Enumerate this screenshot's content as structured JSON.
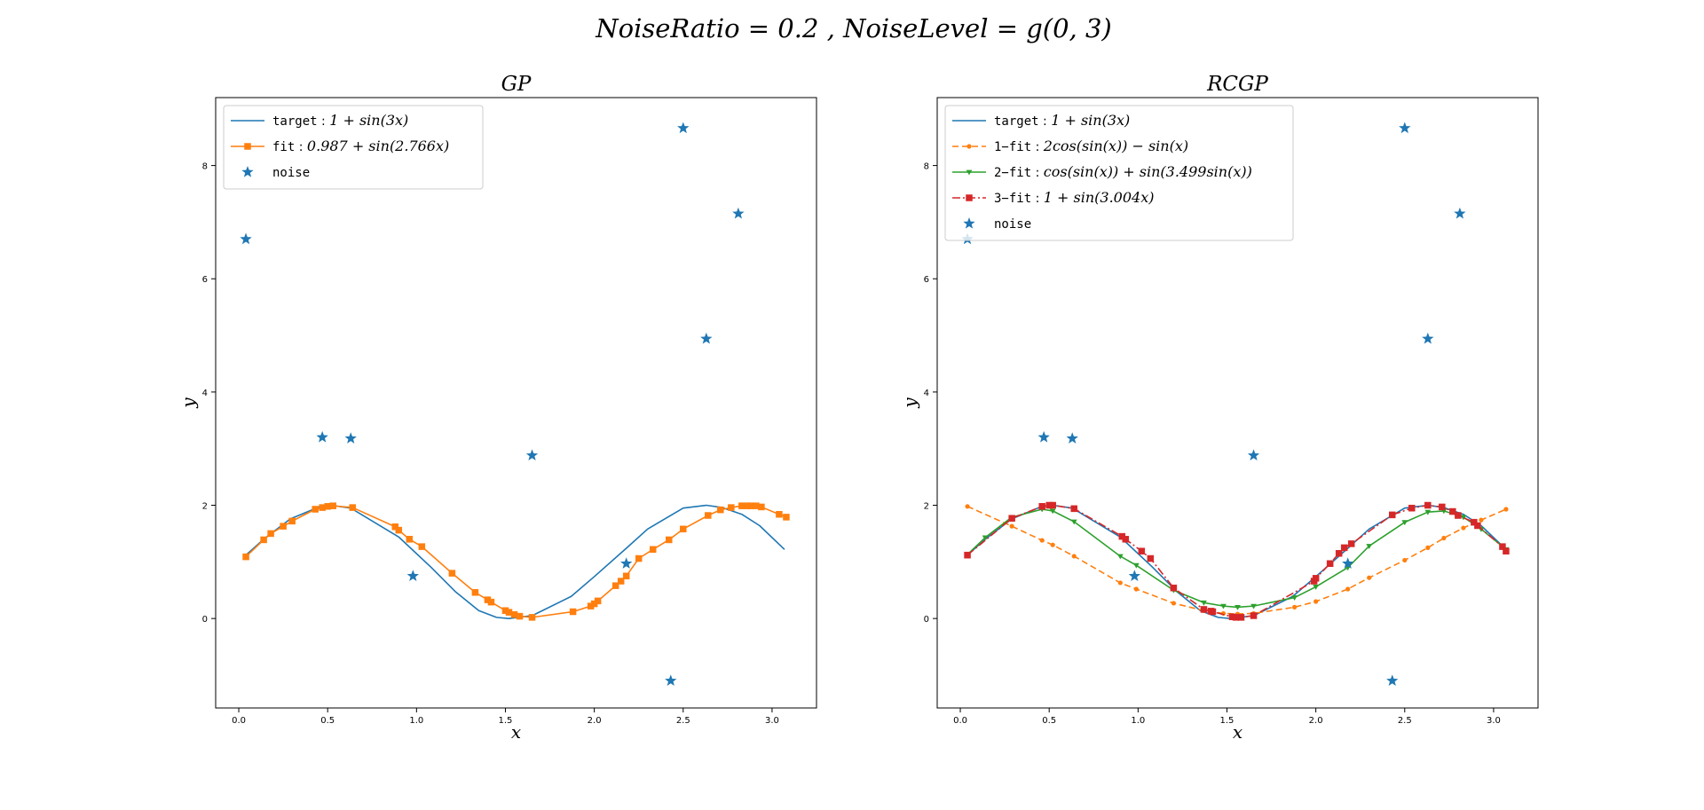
{
  "figure": {
    "suptitle": "NoiseRatio = 0.2 , NoiseLevel = g(0, 3)"
  },
  "chart_data": [
    {
      "type": "line",
      "title": "GP",
      "xlabel": "x",
      "ylabel": "y",
      "xlim": [
        -0.13,
        3.25
      ],
      "ylim": [
        -1.58,
        9.2
      ],
      "xticks": [
        "0.0",
        "0.5",
        "1.0",
        "1.5",
        "2.0",
        "2.5",
        "3.0"
      ],
      "yticks": [
        "0",
        "2",
        "4",
        "6",
        "8"
      ],
      "grid": false,
      "legend_position": "upper-left",
      "series": [
        {
          "name": "target : 1 + sin(3x)",
          "label_prefix": "target",
          "label_math": "1 + sin(3x)",
          "color": "#1f77b4",
          "style": "solid",
          "marker": "none",
          "x": [
            0.04,
            0.14,
            0.29,
            0.46,
            0.52,
            0.63,
            0.9,
            1.08,
            1.22,
            1.35,
            1.45,
            1.52,
            1.65,
            1.87,
            2.0,
            2.18,
            2.3,
            2.5,
            2.63,
            2.72,
            2.83,
            2.93,
            3.07
          ],
          "y": [
            1.12,
            1.4,
            1.76,
            1.98,
            2.0,
            1.95,
            1.44,
            0.91,
            0.47,
            0.14,
            0.02,
            0.0,
            0.05,
            0.39,
            0.74,
            1.24,
            1.58,
            1.95,
            2.0,
            1.96,
            1.84,
            1.64,
            1.22
          ]
        },
        {
          "name": "fit : 0.987 + sin(2.766x)",
          "label_prefix": "fit",
          "label_math": "0.987 + sin(2.766x)",
          "color": "#ff7f0e",
          "style": "solid",
          "marker": "square",
          "x": [
            0.04,
            0.14,
            0.18,
            0.25,
            0.3,
            0.43,
            0.47,
            0.5,
            0.53,
            0.64,
            0.88,
            0.9,
            0.96,
            1.03,
            1.2,
            1.33,
            1.4,
            1.42,
            1.5,
            1.52,
            1.55,
            1.58,
            1.65,
            1.88,
            1.98,
            2.0,
            2.02,
            2.12,
            2.15,
            2.18,
            2.25,
            2.33,
            2.42,
            2.5,
            2.64,
            2.71,
            2.77,
            2.83,
            2.86,
            2.88,
            2.91,
            2.94,
            3.04,
            3.08
          ],
          "y": [
            1.09,
            1.39,
            1.5,
            1.63,
            1.72,
            1.93,
            1.96,
            1.98,
            1.99,
            1.96,
            1.62,
            1.56,
            1.4,
            1.27,
            0.8,
            0.46,
            0.33,
            0.29,
            0.14,
            0.11,
            0.07,
            0.04,
            0.02,
            0.12,
            0.22,
            0.26,
            0.31,
            0.58,
            0.66,
            0.75,
            1.06,
            1.22,
            1.39,
            1.58,
            1.82,
            1.92,
            1.96,
            1.99,
            1.99,
            1.99,
            1.99,
            1.97,
            1.84,
            1.79
          ]
        },
        {
          "name": "noise",
          "label_prefix": "noise",
          "label_math": "",
          "color": "#1f77b4",
          "style": "none",
          "marker": "star",
          "x": [
            0.04,
            0.47,
            0.63,
            0.98,
            1.65,
            2.18,
            2.43,
            2.5,
            2.63,
            2.81
          ],
          "y": [
            6.7,
            3.2,
            3.18,
            0.75,
            2.88,
            0.97,
            -1.1,
            8.66,
            4.94,
            7.15
          ]
        }
      ]
    },
    {
      "type": "line",
      "title": "RCGP",
      "xlabel": "x",
      "ylabel": "y",
      "xlim": [
        -0.13,
        3.25
      ],
      "ylim": [
        -1.58,
        9.2
      ],
      "xticks": [
        "0.0",
        "0.5",
        "1.0",
        "1.5",
        "2.0",
        "2.5",
        "3.0"
      ],
      "yticks": [
        "0",
        "2",
        "4",
        "6",
        "8"
      ],
      "grid": false,
      "legend_position": "upper-left",
      "series": [
        {
          "name": "target : 1 + sin(3x)",
          "label_prefix": "target",
          "label_math": "1 + sin(3x)",
          "color": "#1f77b4",
          "style": "solid",
          "marker": "none",
          "x": [
            0.04,
            0.14,
            0.29,
            0.46,
            0.52,
            0.63,
            0.9,
            1.08,
            1.22,
            1.35,
            1.45,
            1.52,
            1.65,
            1.87,
            2.0,
            2.18,
            2.3,
            2.5,
            2.63,
            2.72,
            2.83,
            2.93,
            3.07
          ],
          "y": [
            1.12,
            1.4,
            1.76,
            1.98,
            2.0,
            1.95,
            1.44,
            0.91,
            0.47,
            0.14,
            0.02,
            0.0,
            0.05,
            0.39,
            0.74,
            1.24,
            1.58,
            1.95,
            2.0,
            1.96,
            1.84,
            1.64,
            1.22
          ]
        },
        {
          "name": "1−fit : 2cos(sin(x)) − sin(x)",
          "label_prefix": "1−fit",
          "label_math": "2cos(sin(x)) − sin(x)",
          "color": "#ff7f0e",
          "style": "dashed",
          "marker": "circle",
          "x": [
            0.04,
            0.29,
            0.46,
            0.52,
            0.64,
            0.9,
            0.99,
            1.2,
            1.37,
            1.48,
            1.56,
            1.65,
            1.88,
            2.0,
            2.18,
            2.3,
            2.5,
            2.63,
            2.72,
            2.83,
            2.93,
            3.07
          ],
          "y": [
            1.98,
            1.63,
            1.38,
            1.3,
            1.1,
            0.63,
            0.52,
            0.27,
            0.14,
            0.09,
            0.08,
            0.09,
            0.2,
            0.3,
            0.52,
            0.72,
            1.03,
            1.25,
            1.42,
            1.6,
            1.74,
            1.93
          ]
        },
        {
          "name": "2−fit : cos(sin(x)) + sin(3.499sin(x))",
          "label_prefix": "2−fit",
          "label_math": "cos(sin(x)) + sin(3.499sin(x))",
          "color": "#2ca02c",
          "style": "solid",
          "marker": "triangle",
          "x": [
            0.04,
            0.14,
            0.29,
            0.46,
            0.52,
            0.64,
            0.9,
            0.99,
            1.2,
            1.37,
            1.48,
            1.56,
            1.65,
            1.88,
            2.0,
            2.18,
            2.3,
            2.5,
            2.63,
            2.72,
            2.83,
            2.93,
            3.07
          ],
          "y": [
            1.13,
            1.43,
            1.79,
            1.93,
            1.9,
            1.71,
            1.1,
            0.94,
            0.5,
            0.28,
            0.22,
            0.2,
            0.22,
            0.37,
            0.56,
            0.9,
            1.28,
            1.7,
            1.88,
            1.9,
            1.79,
            1.58,
            1.22
          ]
        },
        {
          "name": "3−fit : 1 + sin(3.004x)",
          "label_prefix": "3−fit",
          "label_math": "1 + sin(3.004x)",
          "color": "#d62728",
          "style": "dashdot",
          "marker": "square",
          "x": [
            0.04,
            0.29,
            0.46,
            0.5,
            0.52,
            0.64,
            0.91,
            0.93,
            1.02,
            1.07,
            1.2,
            1.37,
            1.41,
            1.42,
            1.53,
            1.55,
            1.58,
            1.65,
            1.99,
            2.0,
            2.08,
            2.13,
            2.16,
            2.2,
            2.43,
            2.54,
            2.63,
            2.71,
            2.77,
            2.8,
            2.89,
            2.91,
            3.05,
            3.07
          ],
          "y": [
            1.12,
            1.77,
            1.98,
            2.0,
            2.0,
            1.94,
            1.45,
            1.4,
            1.19,
            1.06,
            0.54,
            0.16,
            0.13,
            0.12,
            0.03,
            0.02,
            0.02,
            0.05,
            0.66,
            0.71,
            0.97,
            1.15,
            1.25,
            1.32,
            1.83,
            1.95,
            2.0,
            1.97,
            1.89,
            1.82,
            1.7,
            1.64,
            1.27,
            1.19
          ]
        },
        {
          "name": "noise",
          "label_prefix": "noise",
          "label_math": "",
          "color": "#1f77b4",
          "style": "none",
          "marker": "star",
          "x": [
            0.04,
            0.47,
            0.63,
            0.98,
            1.65,
            2.18,
            2.43,
            2.5,
            2.63,
            2.81
          ],
          "y": [
            6.7,
            3.2,
            3.18,
            0.75,
            2.88,
            0.97,
            -1.1,
            8.66,
            4.94,
            7.15
          ]
        }
      ]
    }
  ]
}
